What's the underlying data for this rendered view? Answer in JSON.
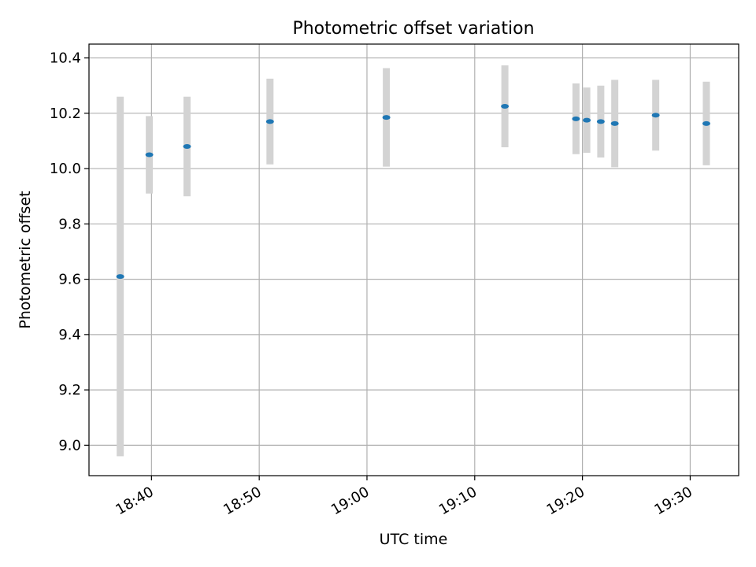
{
  "chart_data": {
    "type": "scatter",
    "title": "Photometric offset variation",
    "xlabel": "UTC time",
    "ylabel": "Photometric offset",
    "x_ticks": [
      "18:40",
      "18:50",
      "19:00",
      "19:10",
      "19:20",
      "19:30"
    ],
    "y_ticks": [
      "9.0",
      "9.2",
      "9.4",
      "9.6",
      "9.8",
      "10.0",
      "10.2",
      "10.4"
    ],
    "xlim": [
      "18:34:12",
      "19:34:30"
    ],
    "ylim": [
      8.89,
      10.45
    ],
    "grid": true,
    "errorbar_color": "#d3d3d3",
    "marker_color": "#1f77b4",
    "points": [
      {
        "time": "18:37:06",
        "value": 9.61,
        "err": 0.65
      },
      {
        "time": "18:39:48",
        "value": 10.05,
        "err": 0.14
      },
      {
        "time": "18:43:18",
        "value": 10.08,
        "err": 0.18
      },
      {
        "time": "18:51:00",
        "value": 10.17,
        "err": 0.155
      },
      {
        "time": "19:01:48",
        "value": 10.185,
        "err": 0.178
      },
      {
        "time": "19:12:48",
        "value": 10.225,
        "err": 0.148
      },
      {
        "time": "19:19:24",
        "value": 10.18,
        "err": 0.128
      },
      {
        "time": "19:20:24",
        "value": 10.175,
        "err": 0.118
      },
      {
        "time": "19:21:42",
        "value": 10.17,
        "err": 0.13
      },
      {
        "time": "19:23:00",
        "value": 10.163,
        "err": 0.158
      },
      {
        "time": "19:26:48",
        "value": 10.193,
        "err": 0.128
      },
      {
        "time": "19:31:30",
        "value": 10.163,
        "err": 0.151
      }
    ]
  }
}
